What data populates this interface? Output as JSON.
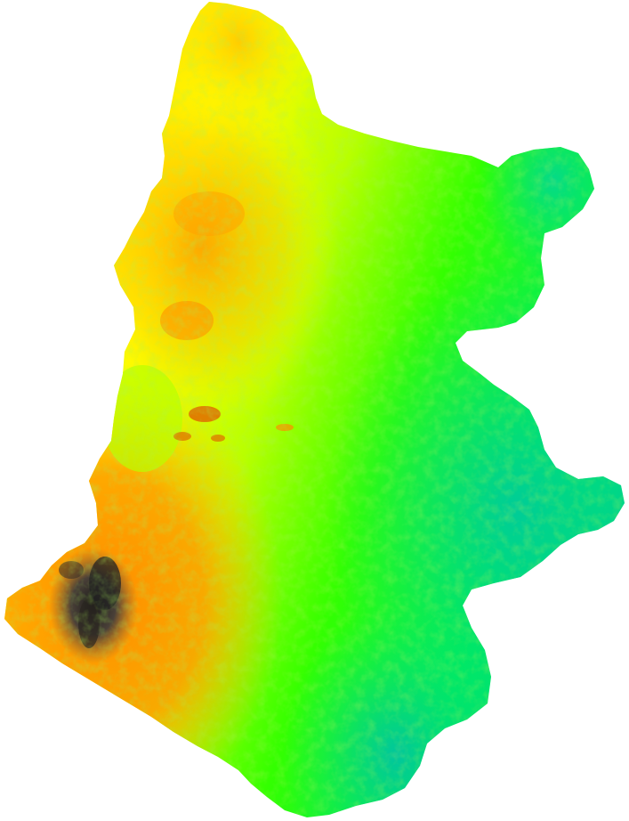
{
  "map": {
    "type": "elevation-raster",
    "background_color": "#ffffff",
    "color_ramp": [
      "#00c8a0",
      "#00e676",
      "#33ff00",
      "#b8ff00",
      "#ffff00",
      "#ffc000",
      "#ff8c00",
      "#e06a00",
      "#6b5a4a",
      "#202020"
    ],
    "ramp_direction": "low-to-high",
    "low_region": "east-southeast",
    "high_region": "southwest"
  }
}
